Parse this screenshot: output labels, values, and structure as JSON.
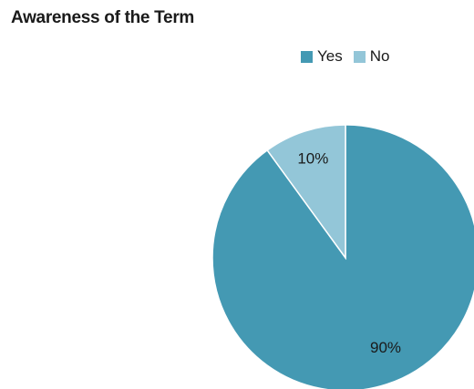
{
  "chart_data": {
    "type": "pie",
    "title": "Awareness of the Term",
    "legend_position": "top-right",
    "categories": [
      "Yes",
      "No"
    ],
    "values": [
      90,
      10
    ],
    "value_labels": [
      "90%",
      "10%"
    ],
    "colors": [
      "#4499b3",
      "#93c6d8"
    ]
  }
}
